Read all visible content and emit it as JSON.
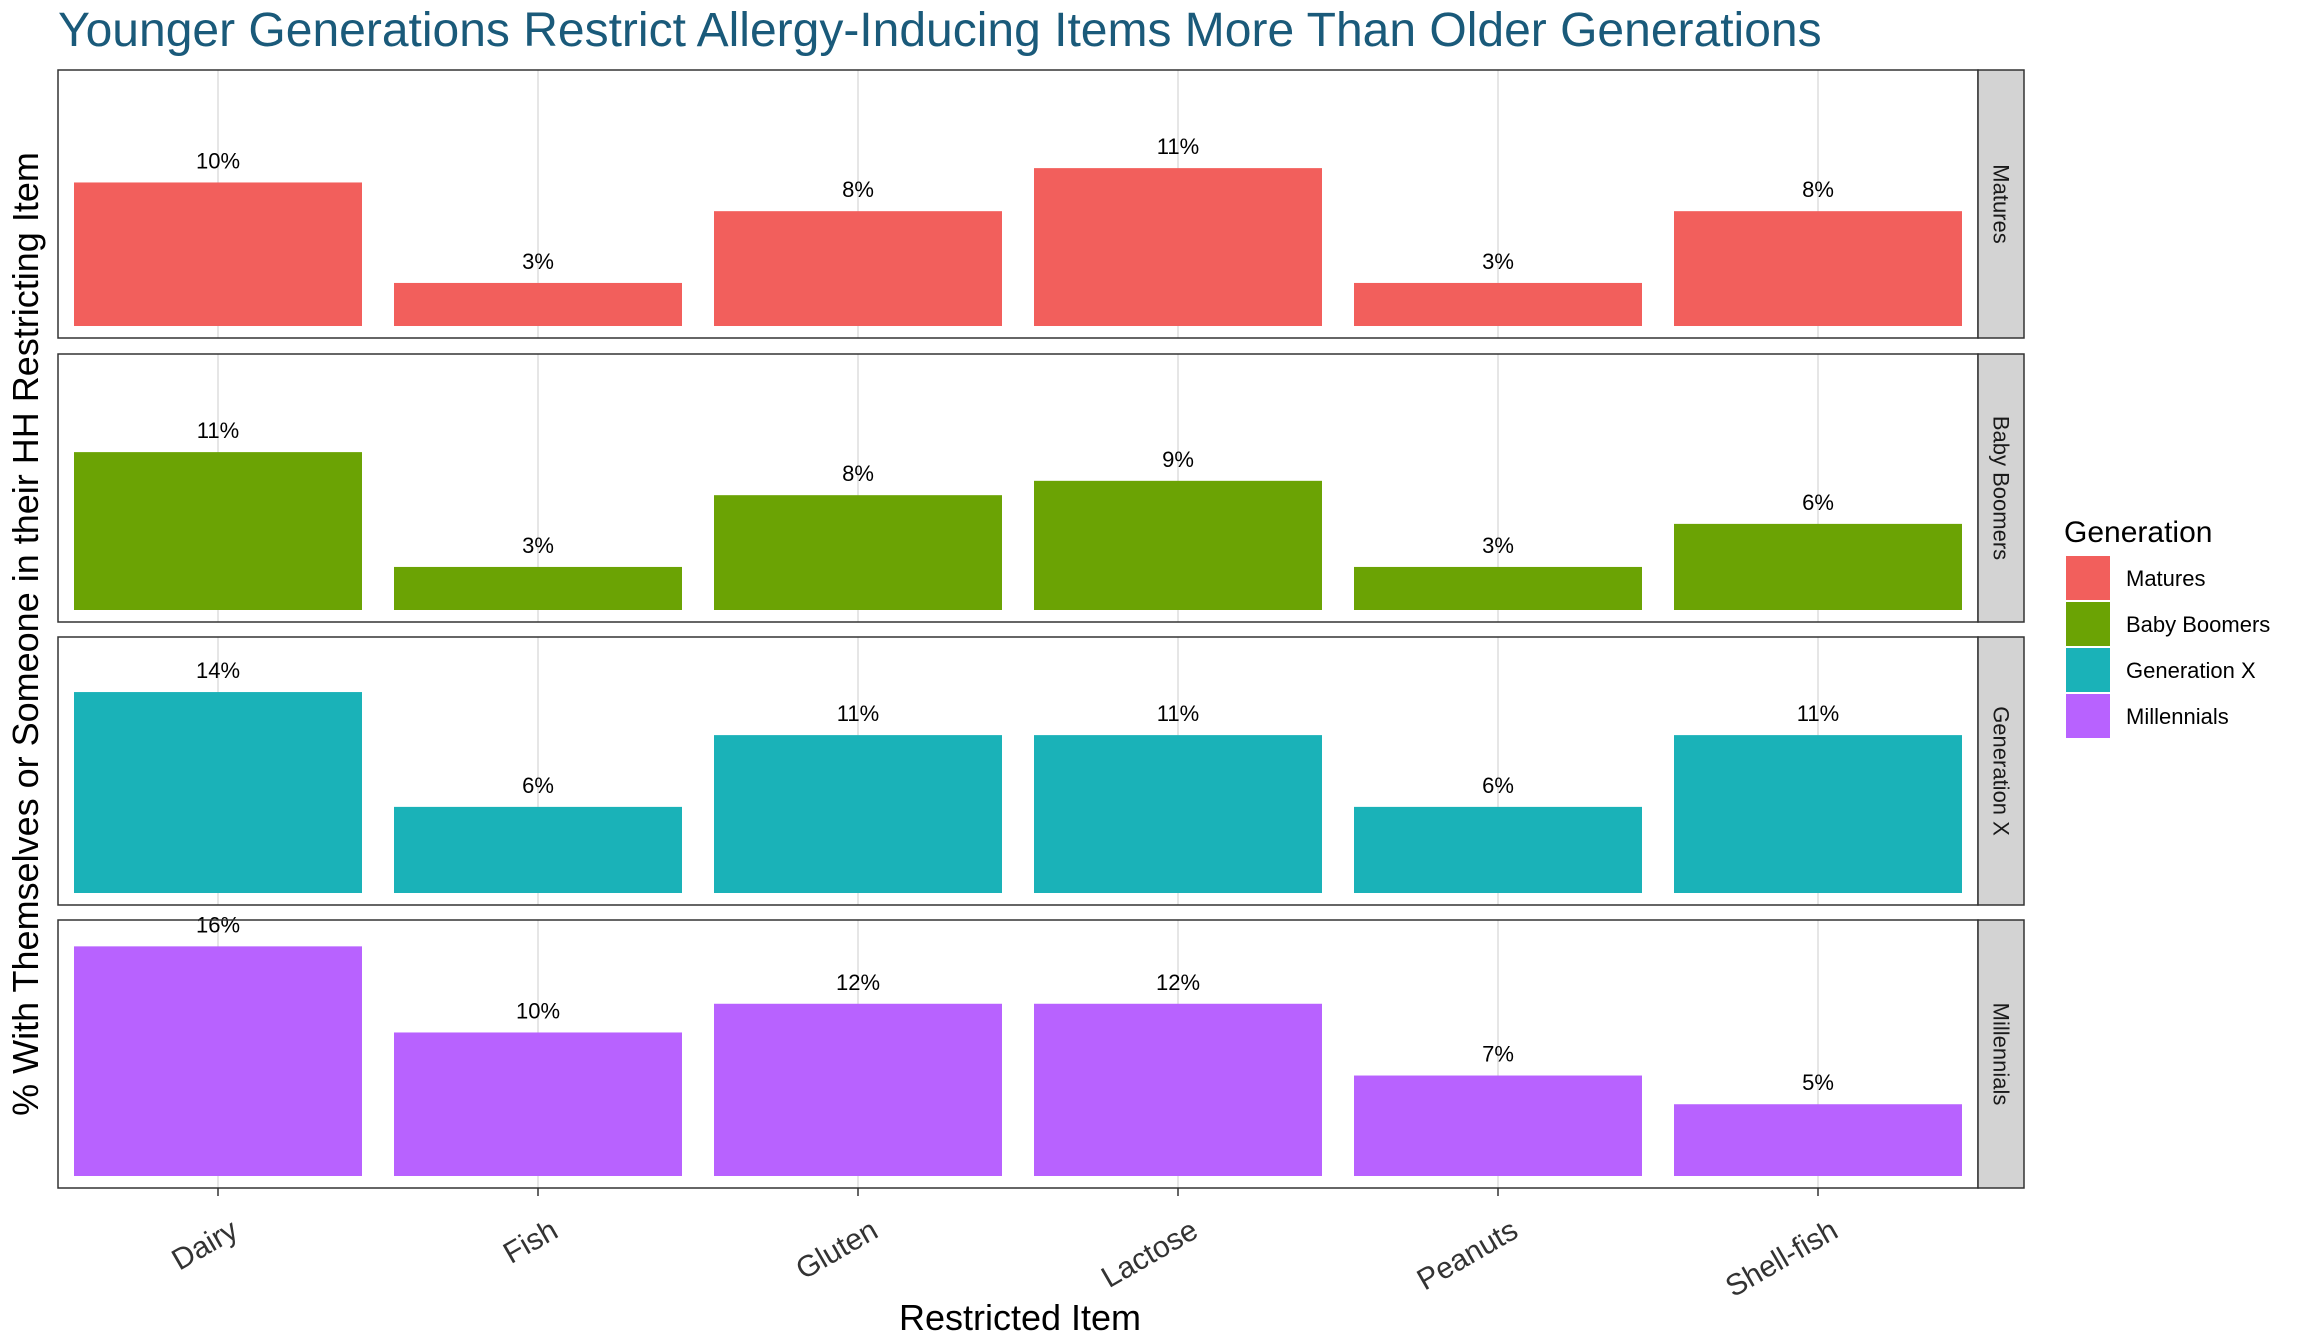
{
  "chart_data": {
    "type": "bar",
    "title": "Younger Generations Restrict Allergy-Inducing Items More Than Older Generations",
    "xlabel": "Restricted Item",
    "ylabel": "% With Themselves or Someone in their HH Restricting Item",
    "categories": [
      "Dairy",
      "Fish",
      "Gluten",
      "Lactose",
      "Peanuts",
      "Shell-fish"
    ],
    "ylim": [
      0,
      17
    ],
    "grid": true,
    "facets": "rows by series",
    "legend": {
      "title": "Generation",
      "placement": "right"
    },
    "series": [
      {
        "name": "Matures",
        "color": "#F25F5C",
        "values": [
          10,
          3,
          8,
          11,
          3,
          8
        ],
        "labels": [
          "10%",
          "3%",
          "8%",
          "11%",
          "3%",
          "8%"
        ]
      },
      {
        "name": "Baby Boomers",
        "color": "#6BA304",
        "values": [
          11,
          3,
          8,
          9,
          3,
          6
        ],
        "labels": [
          "11%",
          "3%",
          "8%",
          "9%",
          "3%",
          "6%"
        ]
      },
      {
        "name": "Generation X",
        "color": "#1AB2B8",
        "values": [
          14,
          6,
          11,
          11,
          6,
          11
        ],
        "labels": [
          "14%",
          "6%",
          "11%",
          "11%",
          "6%",
          "11%"
        ]
      },
      {
        "name": "Millennials",
        "color": "#B862FF",
        "values": [
          16,
          10,
          12,
          12,
          7,
          5
        ],
        "labels": [
          "16%",
          "10%",
          "12%",
          "12%",
          "7%",
          "5%"
        ]
      }
    ]
  }
}
